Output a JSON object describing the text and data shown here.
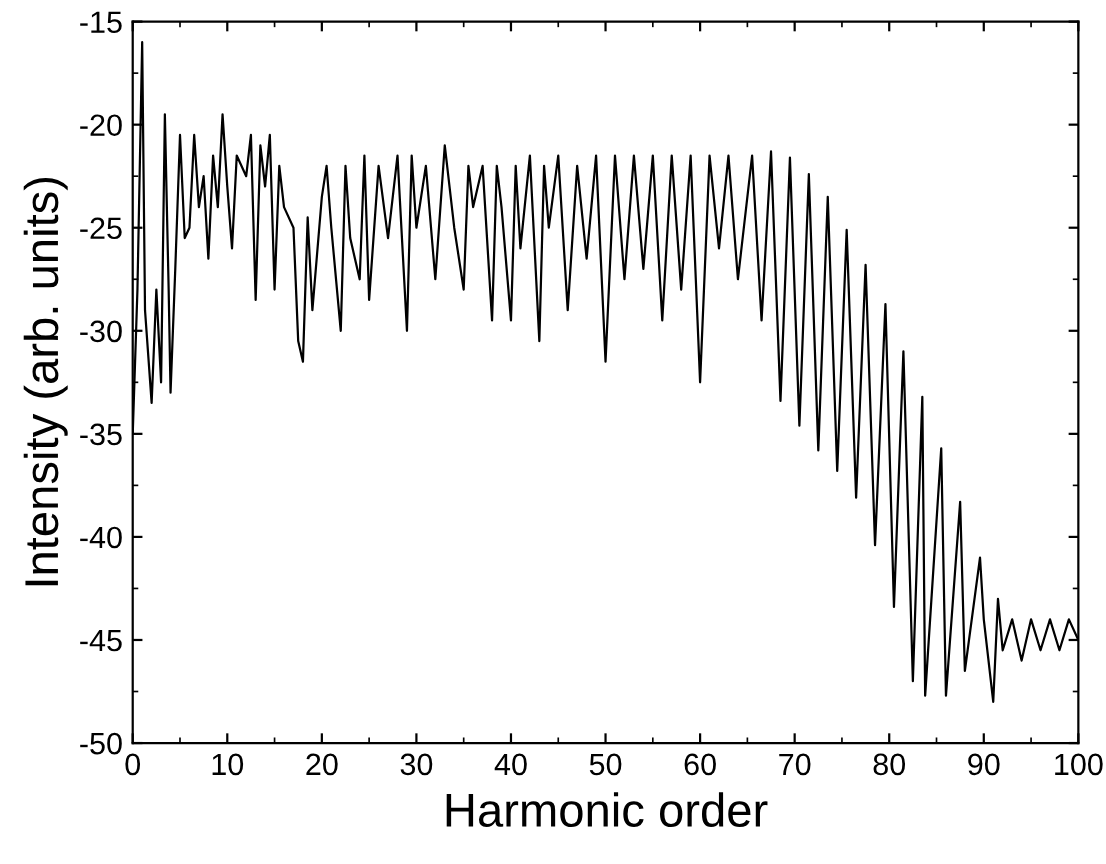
{
  "chart_data": {
    "type": "line",
    "xlabel": "Harmonic order",
    "ylabel": "Intensity (arb. units)",
    "xlim": [
      0,
      100
    ],
    "ylim": [
      -50,
      -15
    ],
    "xticks": [
      0,
      10,
      20,
      30,
      40,
      50,
      60,
      70,
      80,
      90,
      100
    ],
    "yticks": [
      -50,
      -45,
      -40,
      -35,
      -30,
      -25,
      -20,
      -15
    ],
    "grid": false,
    "legend": false,
    "marker": "none",
    "line_style": "solid",
    "series": [
      {
        "color": "#000000",
        "x": [
          0,
          0.5,
          1,
          1.3,
          2,
          2.5,
          3,
          3.4,
          3.8,
          4,
          4.5,
          5,
          5.5,
          6,
          6.5,
          7,
          7.5,
          8,
          8.5,
          9,
          9.5,
          10,
          10.5,
          11,
          12,
          12.5,
          13,
          13.5,
          14,
          14.5,
          15,
          15.5,
          16,
          17,
          17.5,
          18,
          18.5,
          19,
          20,
          20.5,
          21,
          22,
          22.5,
          23,
          24,
          24.5,
          25,
          26,
          27,
          28,
          29,
          29.5,
          30,
          31,
          32,
          33,
          34,
          35,
          35.5,
          36,
          37,
          38,
          38.5,
          39,
          40,
          40.5,
          41,
          42,
          43,
          43.5,
          44,
          45,
          46,
          47,
          48,
          49,
          50,
          51,
          52,
          53,
          54,
          55,
          56,
          57,
          58,
          59,
          60,
          61,
          62,
          63,
          64,
          65.5,
          66.5,
          67.5,
          68.5,
          69.5,
          70.5,
          71.5,
          72.5,
          73.5,
          74.5,
          75.5,
          76.5,
          77.5,
          78.5,
          79.6,
          80.5,
          81.5,
          82.5,
          83.5,
          83.8,
          85.5,
          86,
          87.5,
          88,
          89.6,
          90,
          91,
          91.5,
          92,
          93,
          94,
          95,
          96,
          97,
          98,
          99,
          100
        ],
        "values": [
          -35,
          -28,
          -16,
          -29,
          -33.5,
          -28,
          -32.5,
          -19.5,
          -28,
          -33,
          -27,
          -20.5,
          -25.5,
          -25,
          -20.5,
          -24,
          -22.5,
          -26.5,
          -21.5,
          -24,
          -19.5,
          -23,
          -26,
          -21.5,
          -22.5,
          -20.5,
          -28.5,
          -21,
          -23,
          -20.5,
          -28,
          -22,
          -24,
          -25,
          -30.5,
          -31.5,
          -24.5,
          -29,
          -23.5,
          -22,
          -25,
          -30,
          -22,
          -25.5,
          -27.5,
          -21.5,
          -28.5,
          -22,
          -25.5,
          -21.5,
          -30,
          -21.5,
          -25,
          -22,
          -27.5,
          -21,
          -25,
          -28,
          -22,
          -24,
          -22,
          -29.5,
          -22,
          -24,
          -29.5,
          -22,
          -26,
          -21.5,
          -30.5,
          -22,
          -25,
          -21.5,
          -29,
          -22,
          -26.5,
          -21.5,
          -31.5,
          -21.5,
          -27.5,
          -21.5,
          -27,
          -21.5,
          -29.5,
          -21.5,
          -28,
          -21.5,
          -32.5,
          -21.5,
          -26,
          -21.5,
          -27.5,
          -21.5,
          -29.5,
          -21.3,
          -33.4,
          -21.6,
          -34.6,
          -22.4,
          -35.8,
          -23.5,
          -36.8,
          -25.1,
          -38.1,
          -26.8,
          -40.4,
          -28.7,
          -43.4,
          -31,
          -47,
          -33.2,
          -47.7,
          -35.7,
          -47.7,
          -38.3,
          -46.5,
          -41,
          -44,
          -48,
          -43,
          -45.5,
          -44,
          -46,
          -44,
          -45.5,
          -44,
          -45.5,
          -44,
          -45
        ]
      }
    ]
  }
}
